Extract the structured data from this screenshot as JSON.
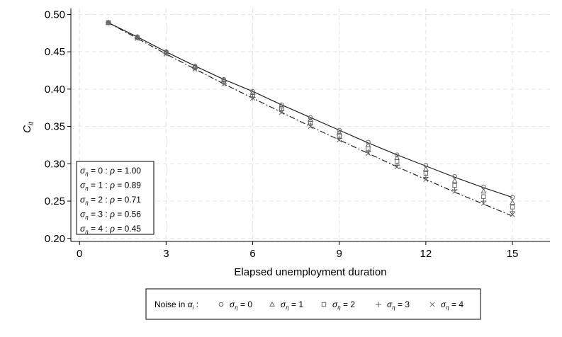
{
  "chart_data": {
    "type": "line",
    "xlabel": "Elapsed unemployment duration",
    "ylabel_main": "C",
    "ylabel_sub": "it",
    "x_ticks": [
      0,
      3,
      6,
      9,
      12,
      15
    ],
    "y_ticks": [
      0.2,
      0.25,
      0.3,
      0.35,
      0.4,
      0.45,
      0.5
    ],
    "y_tick_labels": [
      "0.20",
      "0.25",
      "0.30",
      "0.35",
      "0.40",
      "0.45",
      "0.50"
    ],
    "xlim": [
      -0.3,
      16.3
    ],
    "ylim": [
      0.196,
      0.508
    ],
    "grid": true,
    "x": [
      1,
      2,
      3,
      4,
      5,
      6,
      7,
      8,
      9,
      10,
      11,
      12,
      13,
      14,
      15
    ],
    "lines": [
      {
        "style": "solid",
        "values": [
          0.489,
          0.47,
          0.45,
          0.431,
          0.413,
          0.397,
          0.379,
          0.362,
          0.345,
          0.328,
          0.312,
          0.297,
          0.282,
          0.268,
          0.255
        ]
      },
      {
        "style": "dashdot",
        "values": [
          0.489,
          0.468,
          0.447,
          0.427,
          0.407,
          0.388,
          0.369,
          0.35,
          0.332,
          0.314,
          0.296,
          0.279,
          0.262,
          0.246,
          0.23
        ]
      }
    ],
    "series": [
      {
        "name": "σ_η = 0",
        "marker": "circle",
        "values": [
          0.489,
          0.47,
          0.45,
          0.431,
          0.413,
          0.397,
          0.379,
          0.362,
          0.345,
          0.329,
          0.312,
          0.298,
          0.283,
          0.269,
          0.255
        ]
      },
      {
        "name": "σ_η = 1",
        "marker": "triangle",
        "values": [
          0.489,
          0.47,
          0.45,
          0.43,
          0.412,
          0.395,
          0.377,
          0.359,
          0.342,
          0.325,
          0.308,
          0.293,
          0.277,
          0.263,
          0.248
        ]
      },
      {
        "name": "σ_η = 2",
        "marker": "square",
        "values": [
          0.489,
          0.469,
          0.449,
          0.429,
          0.41,
          0.392,
          0.374,
          0.356,
          0.338,
          0.32,
          0.303,
          0.287,
          0.271,
          0.256,
          0.242
        ]
      },
      {
        "name": "σ_η = 3",
        "marker": "plus",
        "values": [
          0.489,
          0.469,
          0.448,
          0.428,
          0.408,
          0.389,
          0.371,
          0.352,
          0.334,
          0.316,
          0.298,
          0.282,
          0.265,
          0.25,
          0.236
        ]
      },
      {
        "name": "σ_η = 4",
        "marker": "cross",
        "values": [
          0.489,
          0.468,
          0.447,
          0.427,
          0.407,
          0.388,
          0.369,
          0.35,
          0.332,
          0.314,
          0.296,
          0.279,
          0.263,
          0.247,
          0.232
        ]
      }
    ],
    "annotation_rows": [
      {
        "sigma_value": "0",
        "rho_value": "1.00"
      },
      {
        "sigma_value": "1",
        "rho_value": "0.89"
      },
      {
        "sigma_value": "2",
        "rho_value": "0.71"
      },
      {
        "sigma_value": "3",
        "rho_value": "0.56"
      },
      {
        "sigma_value": "4",
        "rho_value": "0.45"
      }
    ],
    "legend": {
      "placement": "bottom",
      "title_prefix": "Noise in",
      "title_var": "α",
      "title_sub": "i",
      "title_suffix": ":",
      "entries": [
        {
          "marker": "circle",
          "value": "0"
        },
        {
          "marker": "triangle",
          "value": "1"
        },
        {
          "marker": "square",
          "value": "2"
        },
        {
          "marker": "plus",
          "value": "3"
        },
        {
          "marker": "cross",
          "value": "4"
        }
      ]
    },
    "symbols": {
      "sigma": "σ",
      "eta": "η",
      "rho": "ρ",
      "eq": " = ",
      "sep": " : "
    }
  }
}
